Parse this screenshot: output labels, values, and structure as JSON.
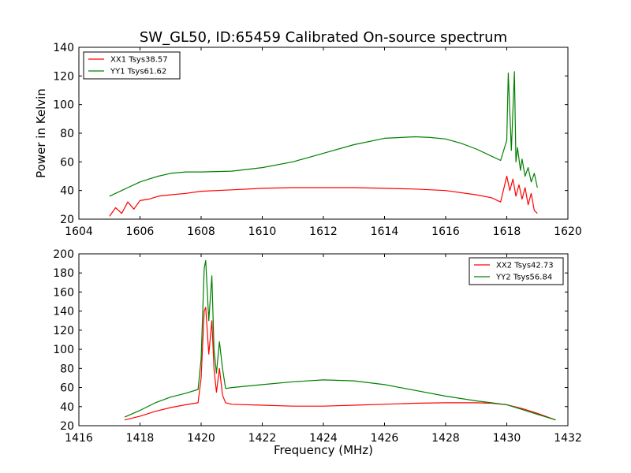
{
  "title": "SW_GL50, ID:65459 Calibrated On-source spectrum",
  "colors": {
    "xx": "#ff0000",
    "yy": "#008000",
    "axes": "#000000",
    "background": "#ffffff"
  },
  "chart_data": [
    {
      "type": "line",
      "title": "SW_GL50, ID:65459 Calibrated On-source spectrum",
      "xlabel": "",
      "ylabel": "Power in Kelvin",
      "xlim": [
        1604,
        1620
      ],
      "ylim": [
        20,
        140
      ],
      "xticks": [
        1604,
        1606,
        1608,
        1610,
        1612,
        1614,
        1616,
        1618,
        1620
      ],
      "yticks": [
        20,
        40,
        60,
        80,
        100,
        120,
        140
      ],
      "grid": false,
      "legend_position": "top-left",
      "series": [
        {
          "name": "XX1 Tsys38.57",
          "color": "#ff0000",
          "x": [
            1605.0,
            1605.2,
            1605.4,
            1605.6,
            1605.8,
            1606.0,
            1606.3,
            1606.6,
            1607.0,
            1607.5,
            1608.0,
            1609.0,
            1610.0,
            1611.0,
            1612.0,
            1613.0,
            1614.0,
            1615.0,
            1616.0,
            1617.0,
            1617.5,
            1617.8,
            1618.0,
            1618.1,
            1618.2,
            1618.3,
            1618.4,
            1618.5,
            1618.6,
            1618.7,
            1618.8,
            1618.9,
            1619.0
          ],
          "values": [
            22,
            28,
            24,
            32,
            27,
            33,
            34,
            36,
            37,
            38,
            39.5,
            40.5,
            41.5,
            42,
            42,
            42,
            41.5,
            41,
            40,
            37,
            35,
            32,
            50,
            40,
            48,
            36,
            44,
            34,
            42,
            30,
            38,
            26,
            24
          ]
        },
        {
          "name": "YY1 Tsys61.62",
          "color": "#008000",
          "x": [
            1605.0,
            1605.2,
            1605.4,
            1605.6,
            1605.8,
            1606.0,
            1606.3,
            1606.6,
            1607.0,
            1607.5,
            1608.0,
            1609.0,
            1610.0,
            1611.0,
            1612.0,
            1613.0,
            1614.0,
            1615.0,
            1615.5,
            1616.0,
            1616.5,
            1617.0,
            1617.5,
            1617.8,
            1618.0,
            1618.05,
            1618.15,
            1618.25,
            1618.3,
            1618.35,
            1618.45,
            1618.5,
            1618.6,
            1618.7,
            1618.8,
            1618.9,
            1619.0
          ],
          "values": [
            36,
            38,
            40,
            42,
            44,
            46,
            48,
            50,
            52,
            53,
            53,
            53.5,
            56,
            60,
            66,
            72,
            76.5,
            77.5,
            77,
            76,
            73,
            69,
            64,
            61,
            75,
            122,
            68,
            123,
            60,
            70,
            54,
            62,
            50,
            56,
            46,
            52,
            42
          ]
        }
      ]
    },
    {
      "type": "line",
      "title": "",
      "xlabel": "Frequency (MHz)",
      "ylabel": "",
      "xlim": [
        1416,
        1432
      ],
      "ylim": [
        20,
        200
      ],
      "xticks": [
        1416,
        1418,
        1420,
        1422,
        1424,
        1426,
        1428,
        1430,
        1432
      ],
      "yticks": [
        20,
        40,
        60,
        80,
        100,
        120,
        140,
        160,
        180,
        200
      ],
      "grid": false,
      "legend_position": "top-right",
      "series": [
        {
          "name": "XX2 Tsys42.73",
          "color": "#ff0000",
          "x": [
            1417.5,
            1418.0,
            1418.5,
            1419.0,
            1419.5,
            1419.9,
            1420.0,
            1420.1,
            1420.15,
            1420.25,
            1420.35,
            1420.42,
            1420.5,
            1420.6,
            1420.7,
            1420.8,
            1421.0,
            1422.0,
            1423.0,
            1424.0,
            1425.0,
            1426.0,
            1427.0,
            1428.0,
            1429.0,
            1429.5,
            1430.0,
            1430.5,
            1431.0,
            1431.6
          ],
          "values": [
            26,
            30,
            35,
            39,
            42,
            44,
            70,
            140,
            144,
            95,
            130,
            80,
            55,
            80,
            52,
            44,
            42.5,
            41.5,
            40.5,
            40.5,
            41.5,
            42.5,
            43.5,
            44,
            44,
            43.5,
            42,
            38,
            33,
            26
          ]
        },
        {
          "name": "YY2 Tsys56.84",
          "color": "#008000",
          "x": [
            1417.5,
            1418.0,
            1418.5,
            1419.0,
            1419.5,
            1419.9,
            1420.0,
            1420.1,
            1420.15,
            1420.25,
            1420.35,
            1420.42,
            1420.5,
            1420.6,
            1420.7,
            1420.8,
            1421.0,
            1422.0,
            1423.0,
            1424.0,
            1425.0,
            1426.0,
            1427.0,
            1428.0,
            1429.0,
            1429.5,
            1430.0,
            1430.5,
            1431.0,
            1431.6
          ],
          "values": [
            29,
            36,
            44,
            50,
            54,
            58,
            90,
            185,
            193,
            130,
            177,
            100,
            75,
            108,
            80,
            59,
            60,
            63,
            66,
            68,
            67,
            63,
            57,
            51,
            46,
            44,
            42,
            37,
            32,
            26
          ]
        }
      ]
    }
  ]
}
